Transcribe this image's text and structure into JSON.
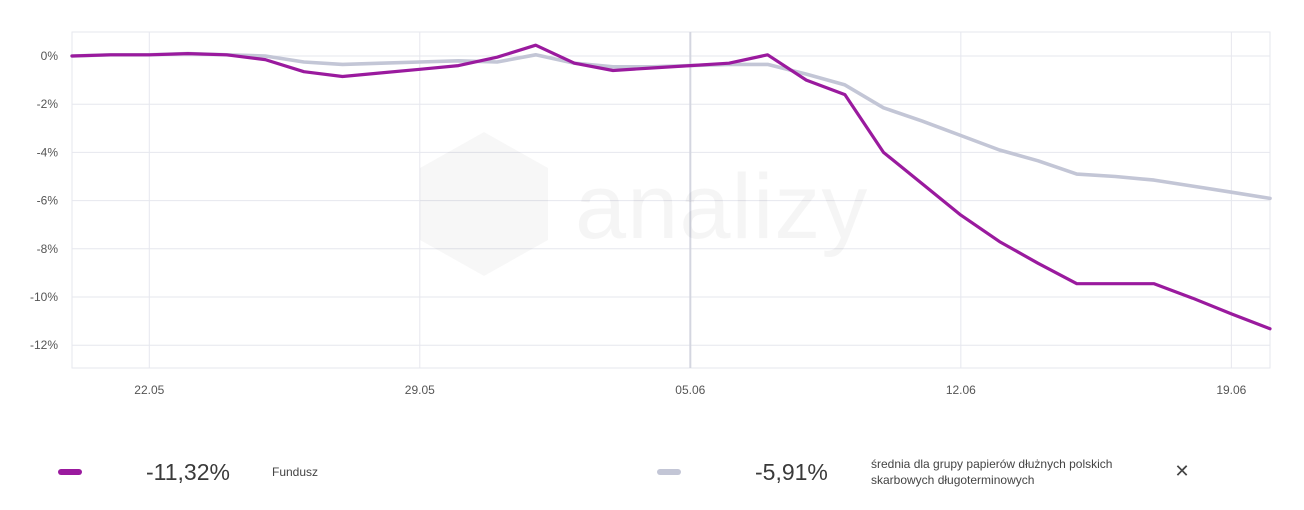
{
  "chart_data": {
    "type": "line",
    "title": "",
    "xlabel": "",
    "ylabel": "",
    "ylim": [
      -13,
      1
    ],
    "grid": true,
    "y_ticks": [
      0,
      -2,
      -4,
      -6,
      -8,
      -10,
      -12
    ],
    "y_tick_labels": [
      "0%",
      "-2%",
      "-4%",
      "-6%",
      "-8%",
      "-10%",
      "-12%"
    ],
    "x_tick_labels": [
      "22.05",
      "29.05",
      "05.06",
      "12.06",
      "19.06"
    ],
    "x_tick_days": [
      2,
      9,
      16,
      23,
      30
    ],
    "x_start_day": 0,
    "x_end_day": 31,
    "series": [
      {
        "name": "Fundusz",
        "color": "#9a1a9e",
        "x": [
          0,
          1,
          2,
          3,
          4,
          5,
          6,
          7,
          8,
          9,
          10,
          11,
          12,
          13,
          14,
          15,
          16,
          17,
          18,
          19,
          20,
          21,
          22,
          23,
          24,
          25,
          26,
          27,
          28,
          29,
          30,
          31
        ],
        "values": [
          0.0,
          0.05,
          0.05,
          0.1,
          0.05,
          -0.15,
          -0.65,
          -0.85,
          -0.7,
          -0.55,
          -0.4,
          -0.05,
          0.45,
          -0.3,
          -0.6,
          -0.5,
          -0.4,
          -0.3,
          0.05,
          -1.0,
          -1.6,
          -4.0,
          -5.3,
          -6.6,
          -7.7,
          -8.6,
          -9.45,
          -9.45,
          -9.45,
          -10.05,
          -10.7,
          -11.32
        ]
      },
      {
        "name": "średnia dla grupy papierów dłużnych polskich skarbowych długoterminowych",
        "color": "#c3c6d6",
        "x": [
          0,
          1,
          2,
          3,
          4,
          5,
          6,
          7,
          8,
          9,
          10,
          11,
          12,
          13,
          14,
          15,
          16,
          17,
          18,
          19,
          20,
          21,
          22,
          23,
          24,
          25,
          26,
          27,
          28,
          29,
          30,
          31
        ],
        "values": [
          0.0,
          0.05,
          0.05,
          0.1,
          0.05,
          0.0,
          -0.25,
          -0.35,
          -0.3,
          -0.25,
          -0.2,
          -0.25,
          0.05,
          -0.3,
          -0.45,
          -0.45,
          -0.4,
          -0.35,
          -0.35,
          -0.75,
          -1.2,
          -2.15,
          -2.7,
          -3.3,
          -3.9,
          -4.35,
          -4.9,
          -5.0,
          -5.15,
          -5.4,
          -5.65,
          -5.91
        ]
      }
    ],
    "legend_placement": "bottom"
  },
  "legend": {
    "fund": {
      "value": "-11,32%",
      "label": "Fundusz"
    },
    "group": {
      "value": "-5,91%",
      "label": "średnia dla grupy papierów dłużnych polskich skarbowych długoterminowych"
    }
  },
  "watermark": {
    "text": "analizy"
  },
  "icons": {
    "close": "close-icon"
  }
}
